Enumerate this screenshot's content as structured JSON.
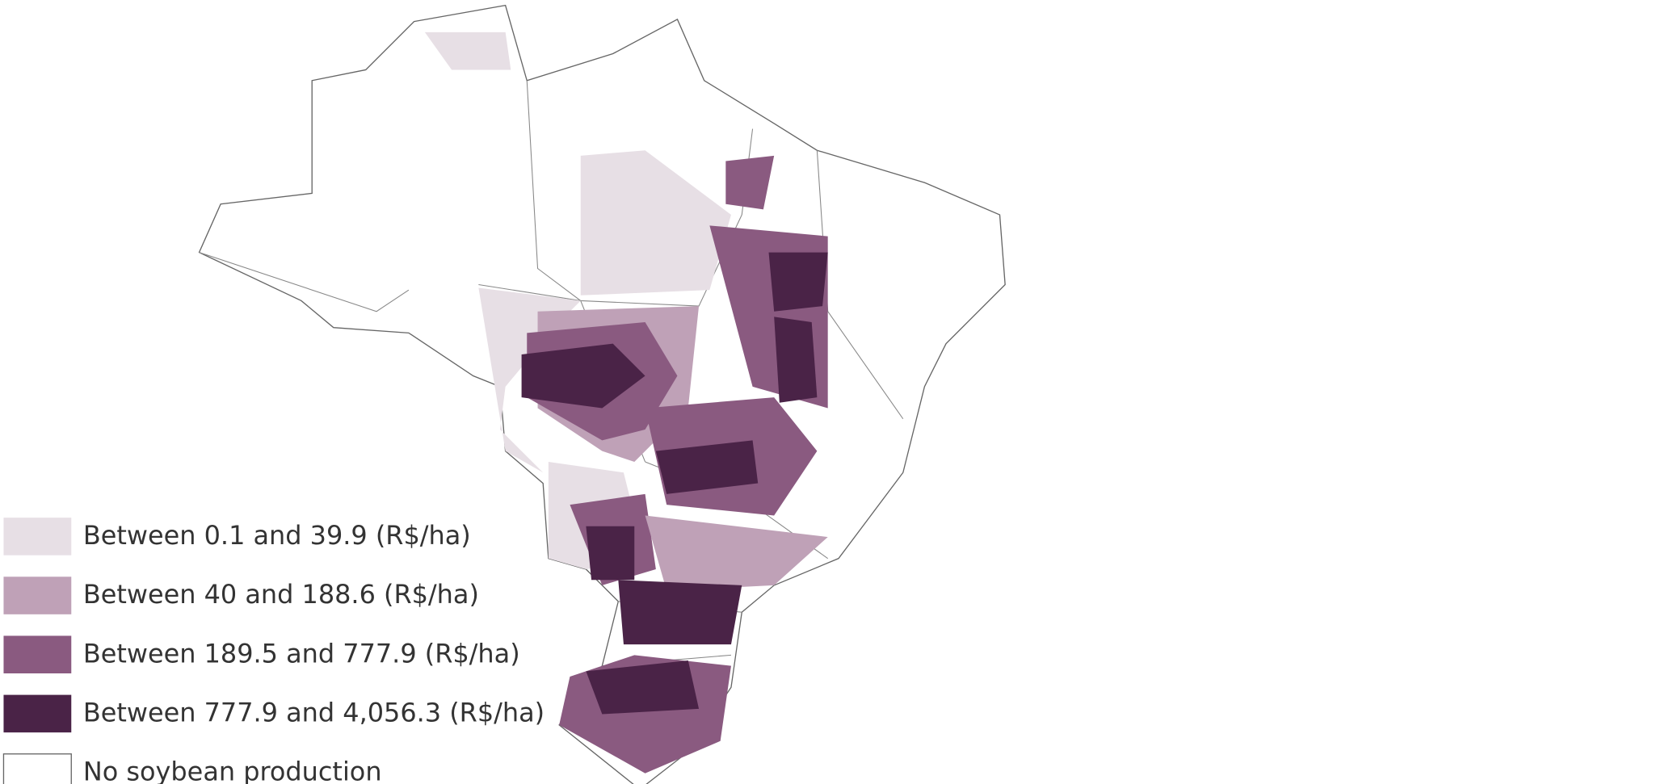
{
  "legend": {
    "items": [
      {
        "label": "Between 0.1 and 39.9 (R$/ha)",
        "color": "#e7dfe5"
      },
      {
        "label": "Between 40 and 188.6 (R$/ha)",
        "color": "#bfa1b7"
      },
      {
        "label": "Between 189.5 and 777.9 (R$/ha)",
        "color": "#8a5a80"
      },
      {
        "label": "Between 777.9 and 4,056.3 (R$/ha)",
        "color": "#4a2347"
      },
      {
        "label": "No soybean production",
        "color": "#ffffff"
      }
    ]
  }
}
